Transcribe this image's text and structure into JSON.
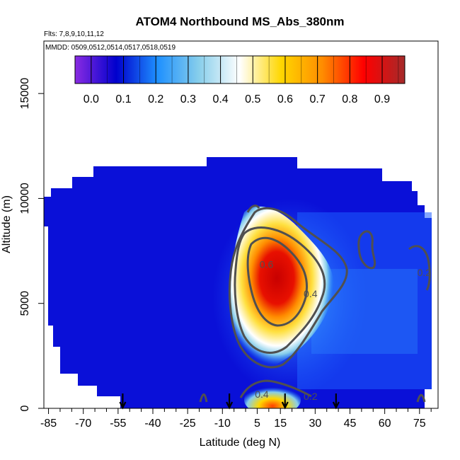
{
  "chart_data": {
    "type": "heatmap",
    "title": "ATOM4 Northbound MS_Abs_380nm",
    "flights_label": "Flts: 7,8,9,10,11,12",
    "dates_label": "MMDD: 0509,0512,0514,0517,0518,0519",
    "xlabel": "Latitude (deg N)",
    "ylabel": "Altitude (m)",
    "xlim": [
      -87,
      83
    ],
    "ylim": [
      0,
      17500
    ],
    "xticks": [
      -85,
      -70,
      -55,
      -40,
      -25,
      -10,
      5,
      15,
      30,
      45,
      60,
      75
    ],
    "xticks_minor": [
      -80,
      -75,
      -65,
      -60,
      -50,
      -45,
      -35,
      -30,
      -20,
      -15,
      -5,
      0,
      10,
      20,
      25,
      35,
      40,
      50,
      55,
      65,
      70,
      80
    ],
    "yticks": [
      0,
      5000,
      10000,
      15000
    ],
    "colorbar": {
      "min": -0.05,
      "max": 0.97,
      "ticks": [
        "0.0",
        "0.1",
        "0.2",
        "0.3",
        "0.4",
        "0.5",
        "0.6",
        "0.7",
        "0.8",
        "0.9"
      ],
      "tick_values": [
        0.0,
        0.1,
        0.2,
        0.3,
        0.4,
        0.5,
        0.6,
        0.7,
        0.8,
        0.9
      ],
      "colors": [
        "#8a2be2",
        "#0000cd",
        "#1e90ff",
        "#87ceeb",
        "#ffffff",
        "#ffd700",
        "#ff8c00",
        "#ff0000",
        "#a52a2a"
      ]
    },
    "flight_markers_lat": [
      -53,
      -7,
      17,
      39
    ],
    "contour_labels": [
      {
        "text": "0.6",
        "lat": 9,
        "alt": 6700
      },
      {
        "text": "0.4",
        "lat": 28,
        "alt": 5300
      },
      {
        "text": "0.2",
        "lat": 77,
        "alt": 6300
      },
      {
        "text": "0.4",
        "lat": 7,
        "alt": 500
      },
      {
        "text": "0.2",
        "lat": 28,
        "alt": 400
      }
    ],
    "colors": {
      "background_field": "#0000cd",
      "contour": "#505050",
      "arrow": "#000000"
    }
  }
}
